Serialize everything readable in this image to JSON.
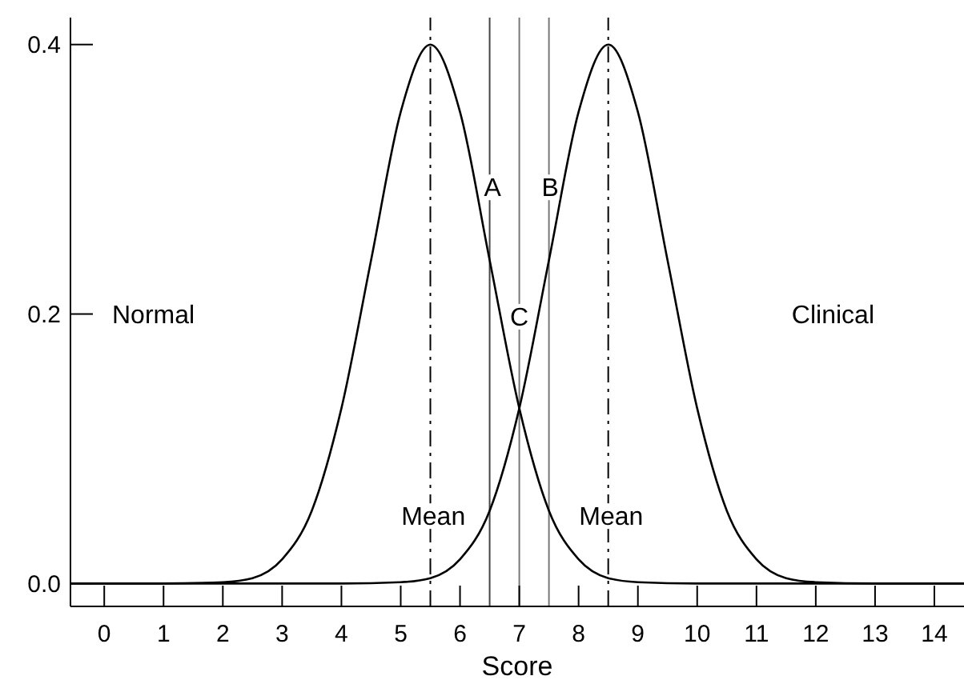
{
  "chart_data": {
    "type": "line",
    "xlabel": "Score",
    "xlim": [
      -0.57,
      14.5
    ],
    "ylim": [
      -0.017,
      0.42
    ],
    "xticks": [
      0,
      1,
      2,
      3,
      4,
      5,
      6,
      7,
      8,
      9,
      10,
      11,
      12,
      13,
      14
    ],
    "yticks": [
      {
        "value": 0,
        "label": "0.0"
      },
      {
        "value": 0.2,
        "label": "0.2"
      },
      {
        "value": 0.4,
        "label": "0.4"
      }
    ],
    "grid": false,
    "marker": "none",
    "line_style": "solid",
    "series": [
      {
        "color": "#000000",
        "x": [
          -0.57,
          1,
          2,
          2.5,
          3,
          3.5,
          4,
          4.5,
          5,
          5.5,
          6,
          6.5,
          7,
          7.5,
          8,
          8.5,
          9,
          10,
          14.5
        ],
        "values": [
          0,
          0,
          0.001,
          0.004,
          0.018,
          0.054,
          0.13,
          0.24,
          0.35,
          0.4,
          0.35,
          0.24,
          0.13,
          0.054,
          0.018,
          0.004,
          0.001,
          0,
          0
        ]
      },
      {
        "color": "#000000",
        "x": [
          -0.57,
          4,
          5,
          5.5,
          6,
          6.5,
          7,
          7.5,
          8,
          8.5,
          9,
          9.5,
          10,
          10.5,
          11,
          11.5,
          12,
          13,
          14.5
        ],
        "values": [
          0,
          0,
          0.001,
          0.004,
          0.018,
          0.054,
          0.13,
          0.24,
          0.35,
          0.4,
          0.35,
          0.24,
          0.13,
          0.054,
          0.018,
          0.004,
          0.001,
          0,
          0
        ]
      }
    ],
    "ref_lines": [
      {
        "axis": "x",
        "value": 5.5,
        "color": "#000000",
        "line_style": "dashdot"
      },
      {
        "axis": "x",
        "value": 8.5,
        "color": "#000000",
        "line_style": "dashdot"
      },
      {
        "axis": "x",
        "value": 6.5,
        "color": "#444444",
        "line_style": "solid"
      },
      {
        "axis": "x",
        "value": 7,
        "color": "#777777",
        "line_style": "solid"
      },
      {
        "axis": "x",
        "value": 7.5,
        "color": "#777777",
        "line_style": "solid"
      }
    ],
    "annotations": [
      "Normal",
      "Clinical",
      {
        "text": "A",
        "x": 6.55,
        "y": 0.294
      },
      {
        "text": "B",
        "x": 7.52,
        "y": 0.294
      },
      {
        "text": "C",
        "x": 7.0,
        "y": 0.198
      },
      {
        "text": "Mean",
        "x": 5.55,
        "y": 0.05
      },
      {
        "text": "Mean",
        "x": 8.55,
        "y": 0.05
      }
    ]
  }
}
